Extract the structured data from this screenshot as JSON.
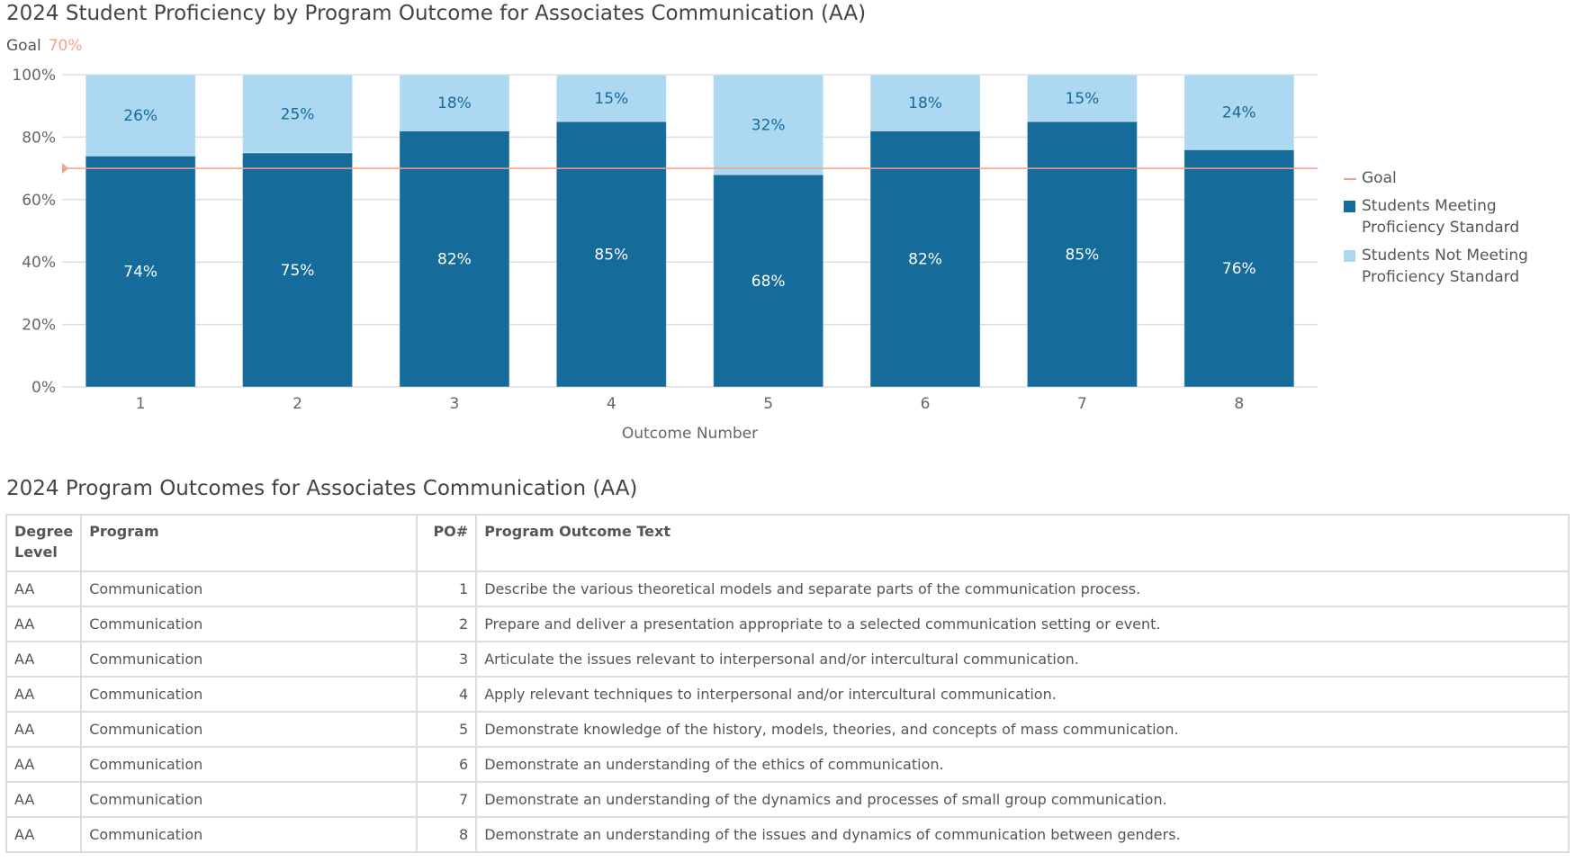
{
  "title": "2024 Student Proficiency by Program Outcome for Associates Communication (AA)",
  "goal_label": "Goal",
  "goal_value": "70%",
  "chart_data": {
    "type": "bar",
    "stacked": true,
    "xlabel": "Outcome Number",
    "ylabel": "",
    "ylim": [
      0,
      100
    ],
    "yticks": [
      "0%",
      "20%",
      "40%",
      "60%",
      "80%",
      "100%"
    ],
    "categories": [
      "1",
      "2",
      "3",
      "4",
      "5",
      "6",
      "7",
      "8"
    ],
    "series": [
      {
        "name": "Students Meeting Proficiency Standard",
        "color": "#156b9a",
        "values": [
          74,
          75,
          82,
          85,
          68,
          82,
          85,
          76
        ]
      },
      {
        "name": "Students Not Meeting Proficiency Standard",
        "color": "#add8f1",
        "values": [
          26,
          25,
          18,
          15,
          32,
          18,
          15,
          24
        ]
      }
    ],
    "goal": {
      "name": "Goal",
      "value": 70,
      "color": "#f4a08a"
    },
    "grid": true,
    "legend_position": "right"
  },
  "table": {
    "title": "2024 Program Outcomes for Associates Communication (AA)",
    "headers": [
      "Degree Level",
      "Program",
      "PO#",
      "Program Outcome Text"
    ],
    "rows": [
      [
        "AA",
        "Communication",
        "1",
        "Describe the various theoretical models and separate parts of the communication process."
      ],
      [
        "AA",
        "Communication",
        "2",
        "Prepare and deliver a presentation appropriate to a selected communication setting or event."
      ],
      [
        "AA",
        "Communication",
        "3",
        "Articulate the issues relevant to interpersonal and/or intercultural communication."
      ],
      [
        "AA",
        "Communication",
        "4",
        "Apply relevant techniques to interpersonal and/or intercultural communication."
      ],
      [
        "AA",
        "Communication",
        "5",
        "Demonstrate knowledge of the history, models, theories, and concepts of mass communication."
      ],
      [
        "AA",
        "Communication",
        "6",
        "Demonstrate an understanding of the ethics of communication."
      ],
      [
        "AA",
        "Communication",
        "7",
        "Demonstrate an understanding of the dynamics and processes of small group communication."
      ],
      [
        "AA",
        "Communication",
        "8",
        "Demonstrate an understanding of the issues and dynamics of communication between genders."
      ]
    ]
  }
}
